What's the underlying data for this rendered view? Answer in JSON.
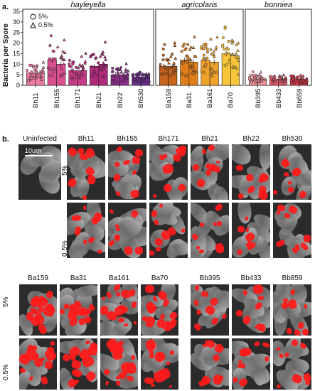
{
  "panel_a": {
    "letter": "a."
  },
  "panel_b": {
    "letter": "b."
  },
  "legend": {
    "circle_label": "5%",
    "triangle_label": "0.5%"
  },
  "scale_bar_label": "10um",
  "uninfected_label": "Uninfected",
  "row_labels": {
    "top": "5%",
    "bottom": "0.5%"
  },
  "chart_data": {
    "type": "bar",
    "ylabel": "Bacteria per Spore",
    "ylim": [
      0,
      35
    ],
    "yticks": [
      "0",
      "5",
      "10",
      "15",
      "20",
      "25",
      "30",
      "35"
    ],
    "groups": [
      {
        "name": "hayleyella",
        "categories": [
          "Bh11",
          "Bh155",
          "Bh171",
          "Bh21",
          "Bh22",
          "Bh530"
        ],
        "means_5": [
          6,
          12,
          7,
          9,
          5,
          4
        ],
        "means_05": [
          6,
          10,
          7,
          10,
          5,
          4
        ],
        "colors": [
          "#f07aa5",
          "#d94f8f",
          "#c93a86",
          "#b02a7c",
          "#8a2d88",
          "#6a2f8e"
        ]
      },
      {
        "name": "agricolaris",
        "categories": [
          "Ba159",
          "Ba31",
          "Ba161",
          "Ba70"
        ],
        "means_5": [
          9,
          12,
          12,
          15
        ],
        "means_05": [
          9,
          11,
          11,
          14
        ],
        "colors": [
          "#c5621b",
          "#e07e1c",
          "#f0a12a",
          "#f7c43a"
        ]
      },
      {
        "name": "bonniea",
        "categories": [
          "Bb395",
          "Bb433",
          "Bb859"
        ],
        "means_5": [
          3,
          3,
          3
        ],
        "means_05": [
          3,
          3,
          3
        ],
        "colors": [
          "#f3909a",
          "#ec5e6e",
          "#e03849"
        ]
      }
    ]
  },
  "images_top": {
    "titles": [
      "Bh11",
      "Bh155",
      "Bh171",
      "Bh21",
      "Bh22",
      "Bh530"
    ]
  },
  "images_bottom_left": {
    "titles": [
      "Ba159",
      "Ba31",
      "Ba161",
      "Ba70"
    ]
  },
  "images_bottom_right": {
    "titles": [
      "Bb395",
      "Bb433",
      "Bb859"
    ]
  }
}
